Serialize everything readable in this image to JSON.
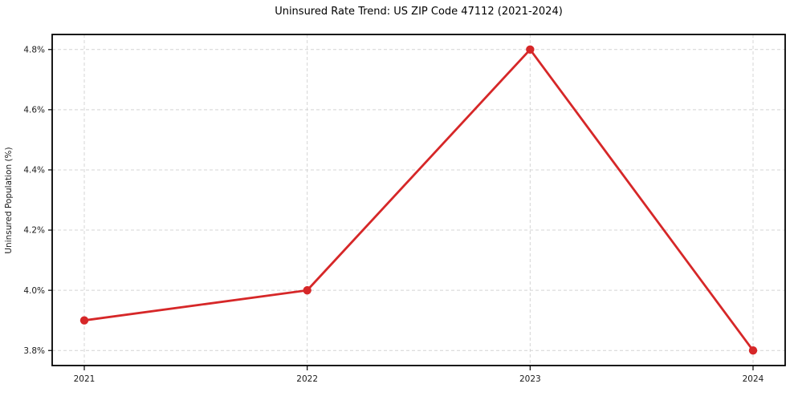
{
  "chart_data": {
    "type": "line",
    "title": "Uninsured Rate Trend: US ZIP Code 47112 (2021-2024)",
    "xlabel": "",
    "ylabel": "Uninsured Population (%)",
    "categories": [
      "2021",
      "2022",
      "2023",
      "2024"
    ],
    "series": [
      {
        "values": [
          3.9,
          4.0,
          4.8,
          3.8
        ],
        "color": "#d62728",
        "marker": "circle"
      }
    ],
    "yticks": [
      3.8,
      4.0,
      4.2,
      4.4,
      4.6,
      4.8
    ],
    "ytick_labels": [
      "3.8%",
      "4.0%",
      "4.2%",
      "4.4%",
      "4.6%",
      "4.8%"
    ],
    "ylim": [
      3.75,
      4.85
    ],
    "grid": true,
    "grid_style": "dashed",
    "grid_color": "#d4d4d4",
    "axis_color": "#000000",
    "tick_label_color": "#1a1a1a",
    "background": "#ffffff",
    "legend": "none"
  }
}
